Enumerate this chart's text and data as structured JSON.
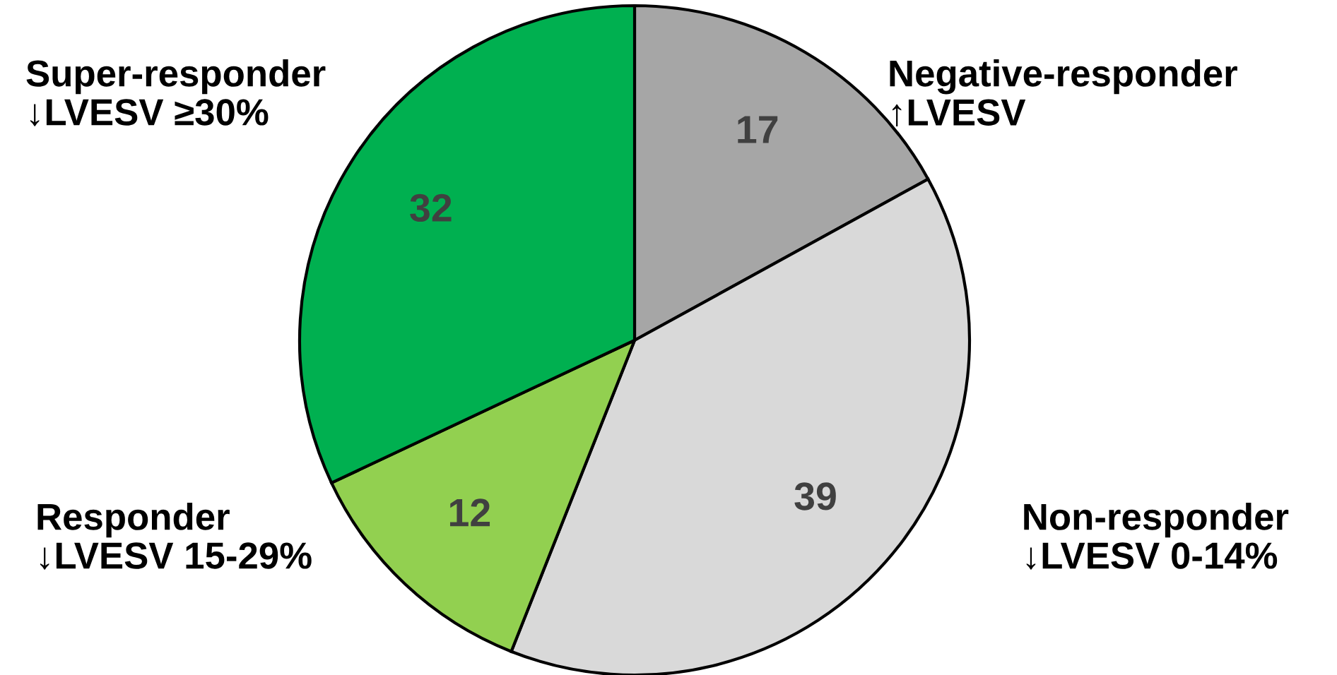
{
  "chart_data": {
    "type": "pie",
    "categories": [
      "Negative-responder\n↑LVESV",
      "Non-responder\n↓LVESV 0-14%",
      "Responder\n↓LVESV 15-29%",
      "Super-responder\n↓LVESV ≥30%"
    ],
    "values": [
      17,
      39,
      12,
      32
    ],
    "colors": [
      "#a6a6a6",
      "#d9d9d9",
      "#92d050",
      "#00b050"
    ],
    "data_labels": true,
    "legend": false
  }
}
